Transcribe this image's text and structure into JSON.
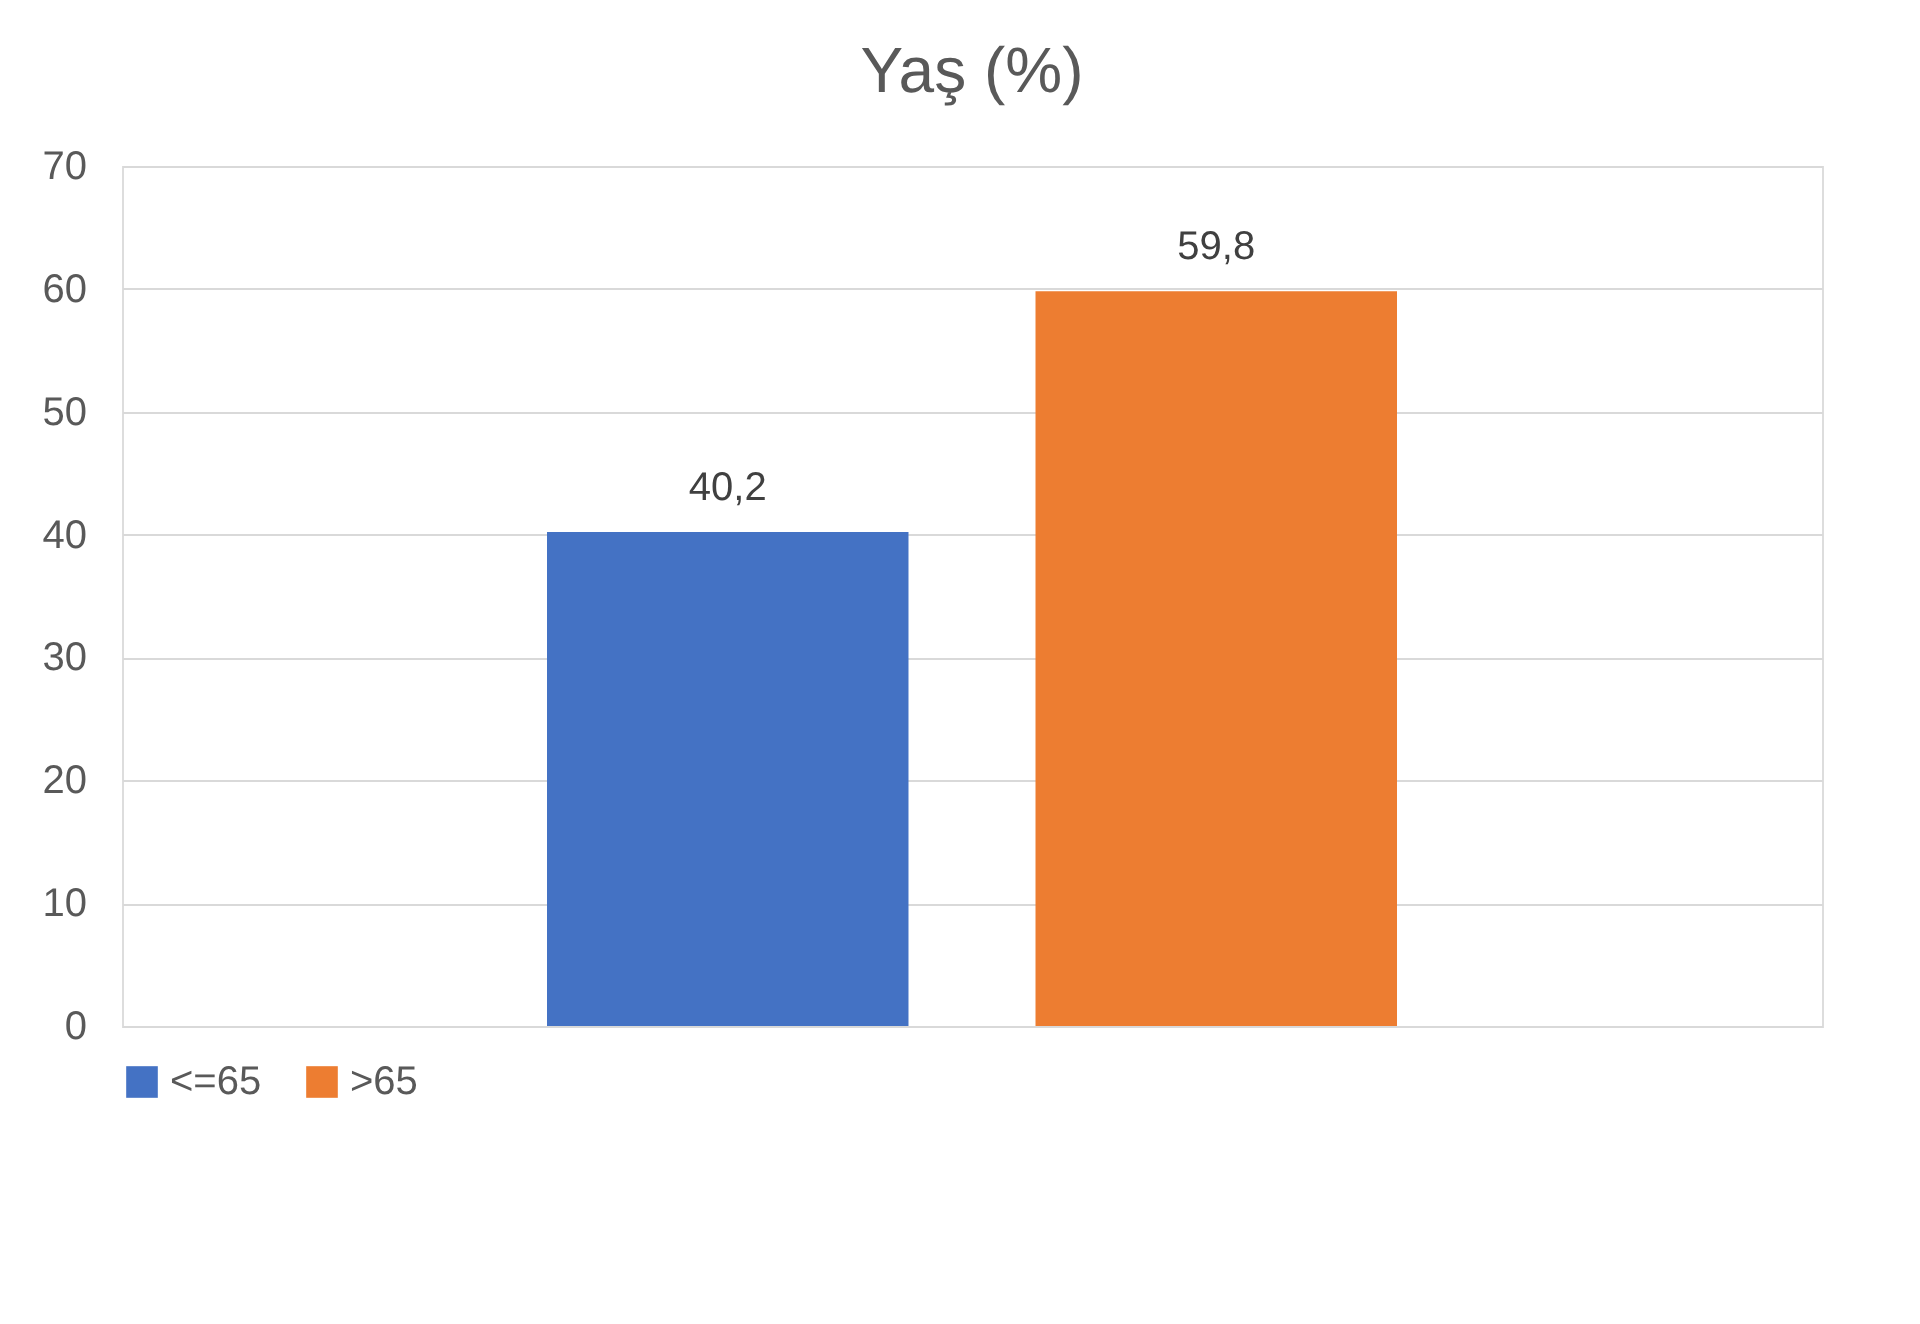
{
  "chart_data": {
    "type": "bar",
    "title": "Yaş (%)",
    "categories": [
      null
    ],
    "series": [
      {
        "name": "<=65",
        "color": "#4472c4",
        "values": [
          40.2
        ],
        "value_labels": [
          "40,2"
        ]
      },
      {
        "name": ">65",
        "color": "#ed7d31",
        "values": [
          59.8
        ],
        "value_labels": [
          "59,8"
        ]
      }
    ],
    "ylim": [
      0,
      70
    ],
    "yticks": [
      0,
      10,
      20,
      30,
      40,
      50,
      60,
      70
    ],
    "grid": "y",
    "legend": "bottom",
    "tick_labels": "y"
  }
}
